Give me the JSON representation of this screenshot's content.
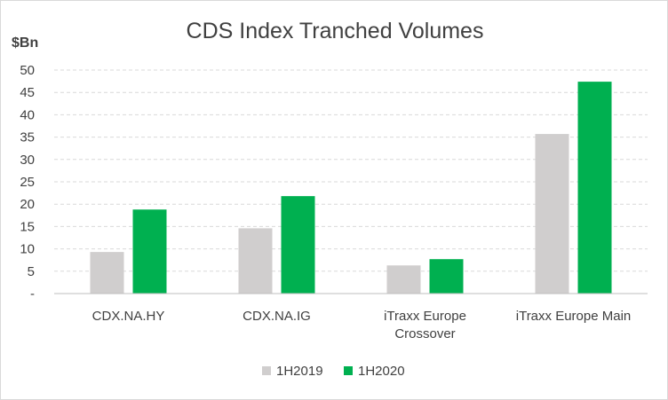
{
  "chart_data": {
    "type": "bar",
    "title": "CDS Index Tranched Volumes",
    "ylabel": "$Bn",
    "xlabel": "",
    "ylim": [
      0,
      50
    ],
    "yticks": [
      0,
      5,
      10,
      15,
      20,
      25,
      30,
      35,
      40,
      45,
      50
    ],
    "ytick_labels": [
      "-",
      "5",
      "10",
      "15",
      "20",
      "25",
      "30",
      "35",
      "40",
      "45",
      "50"
    ],
    "categories": [
      [
        "CDX.NA.HY"
      ],
      [
        "CDX.NA.IG"
      ],
      [
        "iTraxx Europe",
        "Crossover"
      ],
      [
        "iTraxx Europe Main"
      ]
    ],
    "series": [
      {
        "name": "1H2019",
        "color": "#d0cece",
        "values": [
          9.3,
          14.6,
          6.3,
          35.7
        ]
      },
      {
        "name": "1H2020",
        "color": "#00b050",
        "values": [
          18.8,
          21.8,
          7.7,
          47.4
        ]
      }
    ],
    "grid": true,
    "legend_position": "bottom"
  }
}
